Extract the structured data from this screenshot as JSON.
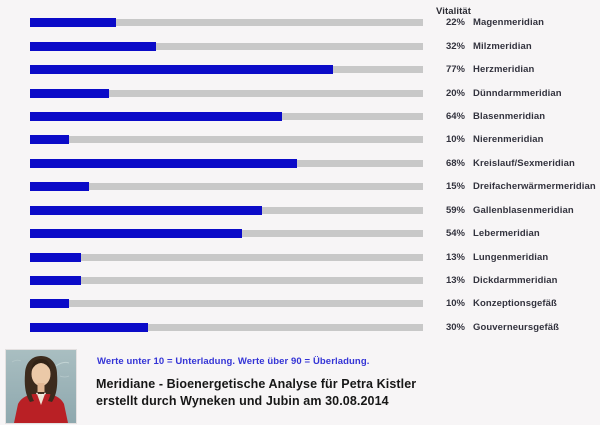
{
  "page": {
    "background": "#f7f5f6"
  },
  "chart_data": {
    "type": "bar",
    "orientation": "horizontal",
    "value_header": "Vitalität",
    "unit": "%",
    "axis_range": [
      0,
      100
    ],
    "bar_color": "#0b0bc8",
    "track_color": "#c8c8c8",
    "categories": [
      "Magenmeridian",
      "Milzmeridian",
      "Herzmeridian",
      "Dünndarmmeridian",
      "Blasenmeridian",
      "Nierenmeridian",
      "Kreislauf/Sexmeridian",
      "Dreifacherwärmermeridian",
      "Gallenblasenmeridian",
      "Lebermeridian",
      "Lungenmeridian",
      "Dickdarmmeridian",
      "Konzeptionsgefäß",
      "Gouverneursgefäß"
    ],
    "values": [
      22,
      32,
      77,
      20,
      64,
      10,
      68,
      15,
      59,
      54,
      13,
      13,
      10,
      30
    ]
  },
  "legend": {
    "note": "Werte unter 10 = Unterladung. Werte über 90 = Überladung."
  },
  "footer": {
    "title_line1": "Meridiane - Bioenergetische Analyse für Petra Kistler",
    "title_line2": "erstellt durch Wyneken und Jubin am 30.08.2014",
    "photo": "portrait-of-practitioner"
  }
}
